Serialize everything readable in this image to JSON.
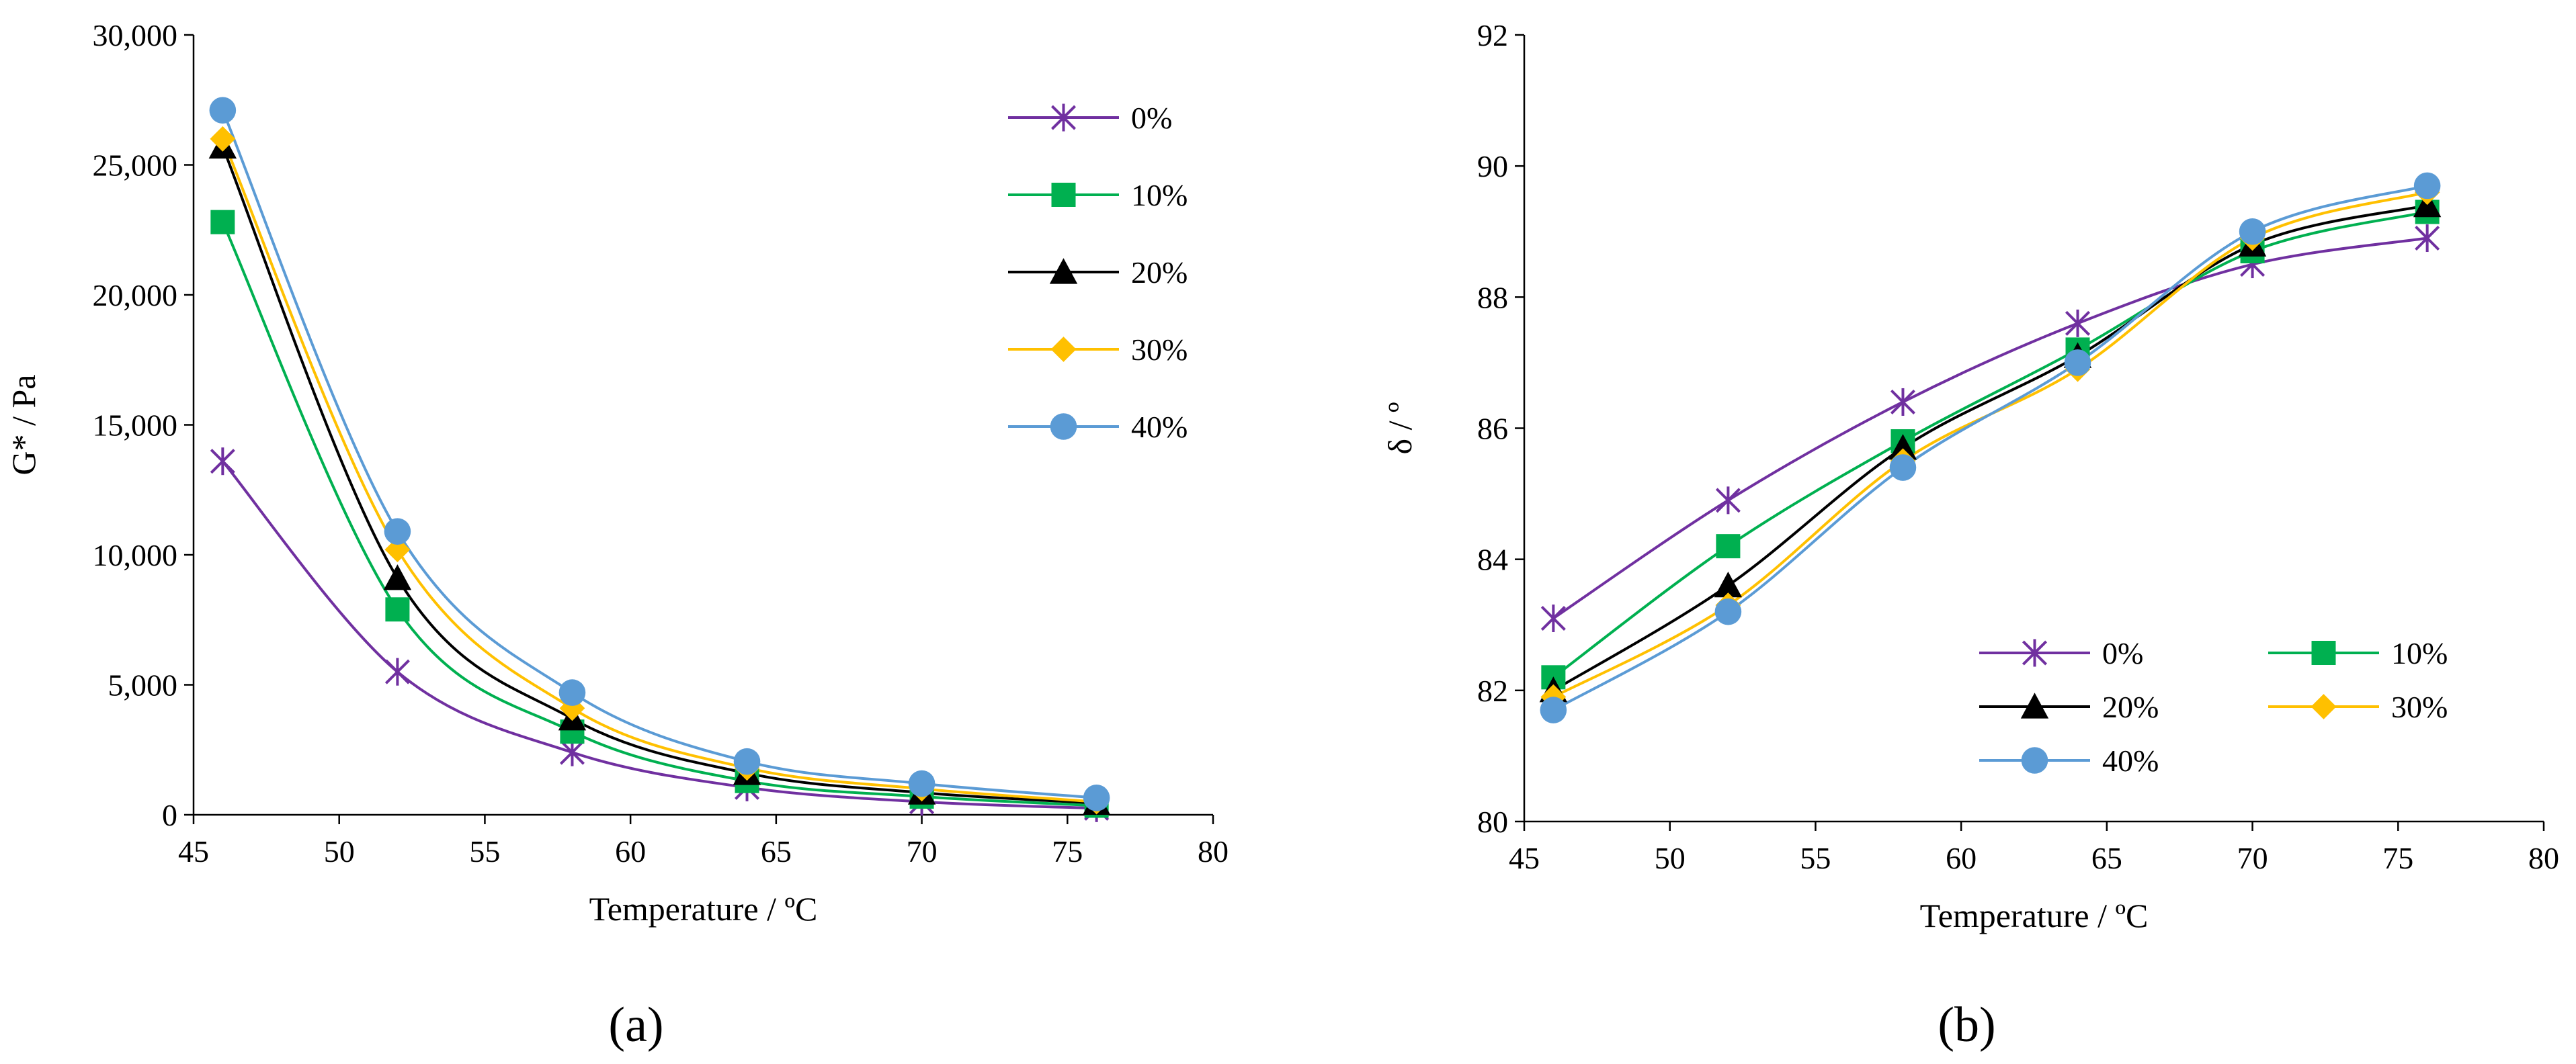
{
  "chart_data": [
    {
      "type": "line",
      "panel_label": "(a)",
      "xlabel": "Temperature / ºC",
      "ylabel": "G* / Pa",
      "xlim": [
        45,
        80
      ],
      "ylim": [
        0,
        30000
      ],
      "xticks": [
        45,
        50,
        55,
        60,
        65,
        70,
        75,
        80
      ],
      "yticks": [
        0,
        5000,
        10000,
        15000,
        20000,
        25000,
        30000
      ],
      "ytick_labels": [
        "0",
        "5,000",
        "10,000",
        "15,000",
        "20,000",
        "25,000",
        "30,000"
      ],
      "grid": false,
      "legend": "top-right, single column",
      "x": [
        46,
        52,
        58,
        64,
        70,
        76
      ],
      "series": [
        {
          "name": "0%",
          "color": "#7030a0",
          "marker": "asterisk",
          "values": [
            13600,
            5500,
            2400,
            1050,
            500,
            250
          ]
        },
        {
          "name": "10%",
          "color": "#00b050",
          "marker": "square",
          "values": [
            22800,
            7900,
            3200,
            1300,
            700,
            350
          ]
        },
        {
          "name": "20%",
          "color": "#000000",
          "marker": "triangle",
          "values": [
            25700,
            9100,
            3700,
            1600,
            850,
            450
          ]
        },
        {
          "name": "30%",
          "color": "#ffc000",
          "marker": "diamond",
          "values": [
            26000,
            10200,
            4100,
            1800,
            1000,
            500
          ]
        },
        {
          "name": "40%",
          "color": "#5b9bd5",
          "marker": "circle",
          "values": [
            27100,
            10900,
            4700,
            2050,
            1200,
            650
          ]
        }
      ]
    },
    {
      "type": "line",
      "panel_label": "(b)",
      "xlabel": "Temperature / ºC",
      "ylabel": "δ / º",
      "xlim": [
        45,
        80
      ],
      "ylim": [
        80,
        92
      ],
      "xticks": [
        45,
        50,
        55,
        60,
        65,
        70,
        75,
        80
      ],
      "yticks": [
        80,
        82,
        84,
        86,
        88,
        90,
        92
      ],
      "ytick_labels": [
        "80",
        "82",
        "84",
        "86",
        "88",
        "90",
        "92"
      ],
      "grid": false,
      "legend": "bottom-right, two columns",
      "x": [
        46,
        52,
        58,
        64,
        70,
        76
      ],
      "series": [
        {
          "name": "0%",
          "color": "#7030a0",
          "marker": "asterisk",
          "values": [
            83.1,
            84.9,
            86.4,
            87.6,
            88.5,
            88.9
          ]
        },
        {
          "name": "10%",
          "color": "#00b050",
          "marker": "square",
          "values": [
            82.2,
            84.2,
            85.8,
            87.2,
            88.7,
            89.3
          ]
        },
        {
          "name": "20%",
          "color": "#000000",
          "marker": "triangle",
          "values": [
            82.0,
            83.6,
            85.7,
            87.1,
            88.8,
            89.4
          ]
        },
        {
          "name": "30%",
          "color": "#ffc000",
          "marker": "diamond",
          "values": [
            81.9,
            83.3,
            85.5,
            86.9,
            88.9,
            89.6
          ]
        },
        {
          "name": "40%",
          "color": "#5b9bd5",
          "marker": "circle",
          "values": [
            81.7,
            83.2,
            85.4,
            87.0,
            89.0,
            89.7
          ]
        }
      ]
    }
  ]
}
